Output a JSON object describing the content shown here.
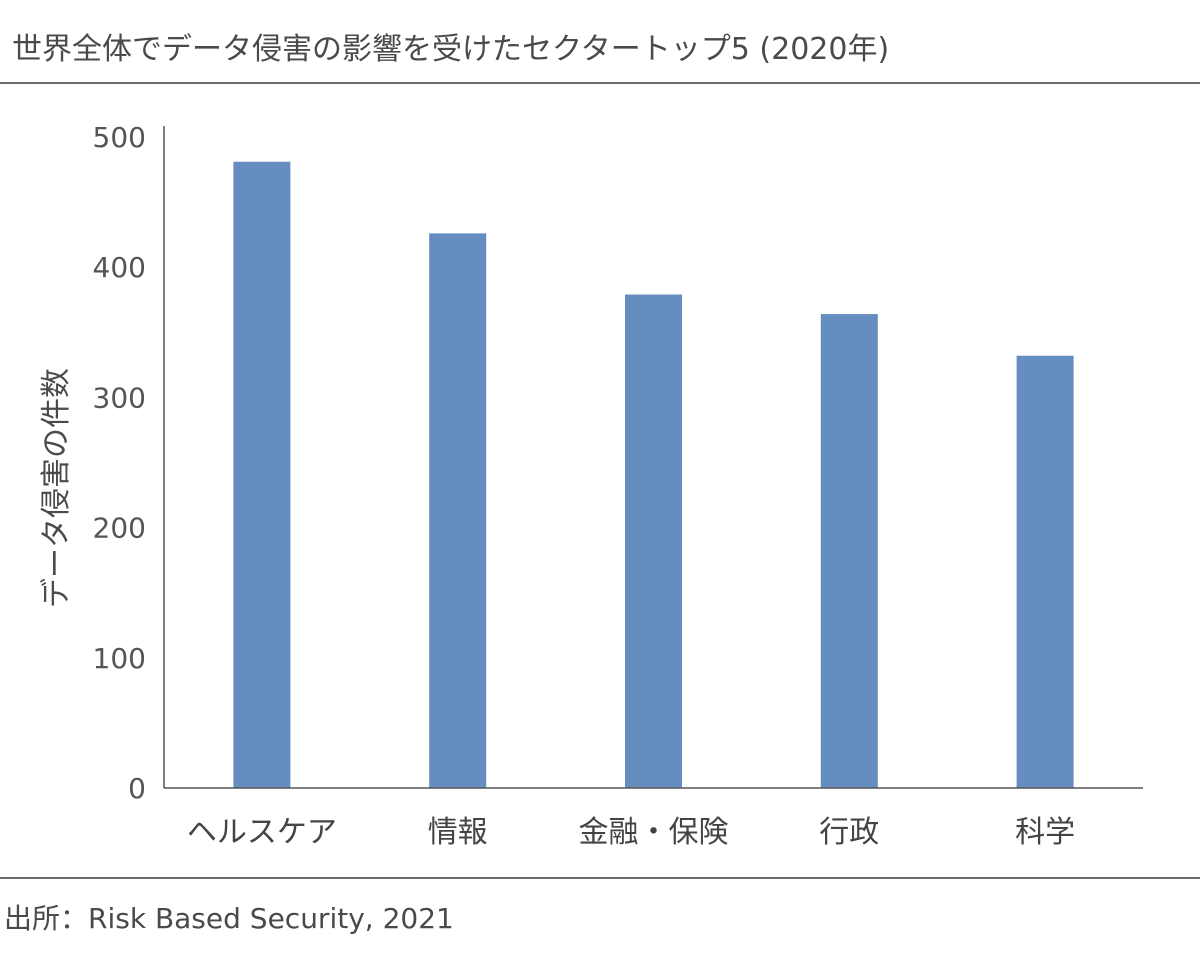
{
  "header": {
    "title": "世界全体でデータ侵害の影響を受けたセクタートップ5 (2020年)"
  },
  "footer": {
    "source": "出所：Risk Based Security, 2021"
  },
  "colors": {
    "bar": "#668dbf",
    "axis": "#555555",
    "divider": "#6b6b6b"
  },
  "chart_data": {
    "type": "bar",
    "title": "世界全体でデータ侵害の影響を受けたセクタートップ5 (2020年)",
    "xlabel": "",
    "ylabel": "データ侵害の件数",
    "categories": [
      "ヘルスケア",
      "情報",
      "金融・保険",
      "行政",
      "科学"
    ],
    "values": [
      481,
      426,
      379,
      364,
      332
    ],
    "ylim": [
      0,
      500
    ],
    "yticks": [
      0,
      100,
      200,
      300,
      400,
      500
    ],
    "grid": false,
    "legend": "none"
  }
}
